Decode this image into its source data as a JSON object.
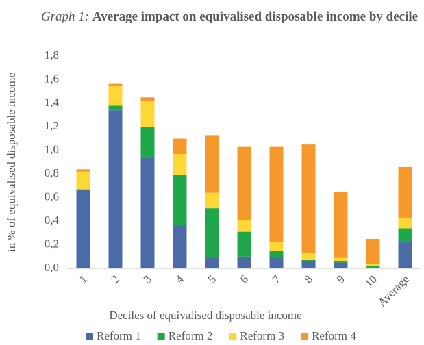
{
  "chart_data": {
    "type": "stacked_bar",
    "title_prefix": "Graph 1:",
    "title": "Average impact on equivalised disposable income by decile",
    "x_label": "Deciles of equivalised disposable income",
    "y_label": "in % of equivalised disposable income",
    "categories": [
      "1",
      "2",
      "3",
      "4",
      "5",
      "6",
      "7",
      "8",
      "9",
      "10",
      "Average"
    ],
    "series": [
      {
        "name": "Reform 1",
        "color": "#4a6ba6",
        "values": [
          0.67,
          1.34,
          0.94,
          0.36,
          0.09,
          0.1,
          0.09,
          0.06,
          0.05,
          0.01,
          0.23
        ]
      },
      {
        "name": "Reform 2",
        "color": "#1ea84a",
        "values": [
          0,
          0.04,
          0.26,
          0.43,
          0.42,
          0.21,
          0.06,
          0.01,
          0.01,
          0.01,
          0.11
        ]
      },
      {
        "name": "Reform 3",
        "color": "#fdd835",
        "values": [
          0.15,
          0.17,
          0.22,
          0.18,
          0.13,
          0.1,
          0.07,
          0.06,
          0.03,
          0.02,
          0.09
        ]
      },
      {
        "name": "Reform 4",
        "color": "#f5992a",
        "values": [
          0.02,
          0.02,
          0.03,
          0.13,
          0.49,
          0.62,
          0.81,
          0.92,
          0.56,
          0.21,
          0.43
        ]
      }
    ],
    "ylim": [
      0,
      1.8
    ],
    "yticks": [
      {
        "value": 0,
        "label": "0,0"
      },
      {
        "value": 0.2,
        "label": "0,2"
      },
      {
        "value": 0.4,
        "label": "0,4"
      },
      {
        "value": 0.6,
        "label": "0,6"
      },
      {
        "value": 0.8,
        "label": "0,8"
      },
      {
        "value": 1.0,
        "label": "1,0"
      },
      {
        "value": 1.2,
        "label": "1,2"
      },
      {
        "value": 1.4,
        "label": "1,4"
      },
      {
        "value": 1.6,
        "label": "1,6"
      },
      {
        "value": 1.8,
        "label": "1,8"
      }
    ],
    "grid": false,
    "legend": "bottom"
  }
}
